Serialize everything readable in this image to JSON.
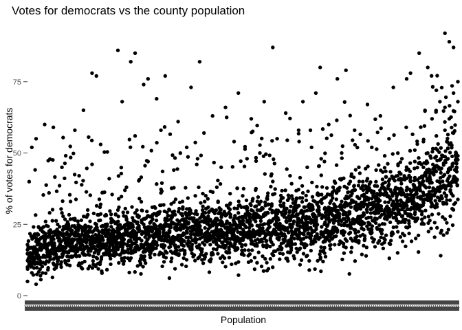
{
  "colors": {
    "background": "#ffffff",
    "point": "#000000",
    "tick_text": "#4d4d4d",
    "x_tick_label": "#444444"
  },
  "chart_data": {
    "type": "scatter",
    "title": "Votes for democrats vs the county population",
    "xlabel": "Population",
    "ylabel": "% of votes for democrats",
    "x_axis": "categorical",
    "x_tick_labels_overlapping": true,
    "ylim": [
      0,
      94
    ],
    "yticks": [
      0,
      25,
      50,
      75
    ],
    "grid": false,
    "legend": "none",
    "approx_point_count": 3100,
    "approximate_points_x_is_population_rank_fraction": [
      [
        0.0,
        5
      ],
      [
        0.0,
        10
      ],
      [
        0.01,
        13
      ],
      [
        0.01,
        8
      ],
      [
        0.01,
        52
      ],
      [
        0.02,
        4
      ],
      [
        0.02,
        15
      ],
      [
        0.02,
        55
      ],
      [
        0.03,
        17
      ],
      [
        0.03,
        11
      ],
      [
        0.03,
        7
      ],
      [
        0.04,
        19
      ],
      [
        0.04,
        60
      ],
      [
        0.05,
        14
      ],
      [
        0.05,
        22
      ],
      [
        0.05,
        36
      ],
      [
        0.06,
        59
      ],
      [
        0.06,
        18
      ],
      [
        0.07,
        12
      ],
      [
        0.07,
        25
      ],
      [
        0.08,
        16
      ],
      [
        0.08,
        29
      ],
      [
        0.08,
        45
      ],
      [
        0.09,
        20
      ],
      [
        0.09,
        24
      ],
      [
        0.1,
        17
      ],
      [
        0.1,
        33
      ],
      [
        0.11,
        21
      ],
      [
        0.11,
        27
      ],
      [
        0.11,
        58
      ],
      [
        0.12,
        14
      ],
      [
        0.12,
        42
      ],
      [
        0.13,
        19
      ],
      [
        0.13,
        24
      ],
      [
        0.13,
        65
      ],
      [
        0.14,
        22
      ],
      [
        0.14,
        30
      ],
      [
        0.15,
        78
      ],
      [
        0.15,
        18
      ],
      [
        0.15,
        46
      ],
      [
        0.16,
        77
      ],
      [
        0.16,
        25
      ],
      [
        0.17,
        20
      ],
      [
        0.17,
        32
      ],
      [
        0.17,
        53
      ],
      [
        0.18,
        23
      ],
      [
        0.18,
        28
      ],
      [
        0.19,
        15
      ],
      [
        0.19,
        41
      ],
      [
        0.2,
        26
      ],
      [
        0.2,
        21
      ],
      [
        0.21,
        86
      ],
      [
        0.21,
        30
      ],
      [
        0.22,
        24
      ],
      [
        0.22,
        19
      ],
      [
        0.22,
        68
      ],
      [
        0.23,
        27
      ],
      [
        0.23,
        38
      ],
      [
        0.24,
        82
      ],
      [
        0.24,
        22
      ],
      [
        0.25,
        85
      ],
      [
        0.25,
        29
      ],
      [
        0.25,
        56
      ],
      [
        0.26,
        20
      ],
      [
        0.26,
        34
      ],
      [
        0.27,
        74
      ],
      [
        0.27,
        25
      ],
      [
        0.28,
        28
      ],
      [
        0.28,
        47
      ],
      [
        0.28,
        76
      ],
      [
        0.29,
        23
      ],
      [
        0.29,
        31
      ],
      [
        0.3,
        69
      ],
      [
        0.3,
        21
      ],
      [
        0.31,
        36
      ],
      [
        0.31,
        58
      ],
      [
        0.32,
        27
      ],
      [
        0.32,
        77
      ],
      [
        0.33,
        24
      ],
      [
        0.33,
        30
      ],
      [
        0.34,
        44
      ],
      [
        0.34,
        19
      ],
      [
        0.35,
        25
      ],
      [
        0.35,
        61
      ],
      [
        0.36,
        28
      ],
      [
        0.36,
        33
      ],
      [
        0.37,
        22
      ],
      [
        0.37,
        52
      ],
      [
        0.38,
        27
      ],
      [
        0.38,
        73
      ],
      [
        0.39,
        20
      ],
      [
        0.39,
        35
      ],
      [
        0.4,
        82
      ],
      [
        0.4,
        24
      ],
      [
        0.41,
        29
      ],
      [
        0.41,
        57
      ],
      [
        0.42,
        26
      ],
      [
        0.42,
        31
      ],
      [
        0.43,
        21
      ],
      [
        0.43,
        63
      ],
      [
        0.44,
        27
      ],
      [
        0.44,
        38
      ],
      [
        0.45,
        23
      ],
      [
        0.45,
        45
      ],
      [
        0.46,
        28
      ],
      [
        0.46,
        66
      ],
      [
        0.47,
        24
      ],
      [
        0.47,
        32
      ],
      [
        0.48,
        20
      ],
      [
        0.48,
        54
      ],
      [
        0.49,
        29
      ],
      [
        0.49,
        71
      ],
      [
        0.5,
        25
      ],
      [
        0.5,
        35
      ],
      [
        0.51,
        22
      ],
      [
        0.51,
        48
      ],
      [
        0.52,
        30
      ],
      [
        0.52,
        62
      ],
      [
        0.53,
        26
      ],
      [
        0.53,
        37
      ],
      [
        0.54,
        23
      ],
      [
        0.54,
        50
      ],
      [
        0.55,
        28
      ],
      [
        0.55,
        68
      ],
      [
        0.56,
        32
      ],
      [
        0.56,
        25
      ],
      [
        0.57,
        87
      ],
      [
        0.57,
        40
      ],
      [
        0.58,
        27
      ],
      [
        0.58,
        55
      ],
      [
        0.59,
        22
      ],
      [
        0.59,
        34
      ],
      [
        0.6,
        29
      ],
      [
        0.6,
        64
      ],
      [
        0.61,
        25
      ],
      [
        0.61,
        42
      ],
      [
        0.62,
        31
      ],
      [
        0.62,
        20
      ],
      [
        0.63,
        58
      ],
      [
        0.63,
        27
      ],
      [
        0.64,
        36
      ],
      [
        0.64,
        68
      ],
      [
        0.65,
        24
      ],
      [
        0.65,
        45
      ],
      [
        0.66,
        30
      ],
      [
        0.66,
        52
      ],
      [
        0.67,
        27
      ],
      [
        0.67,
        71
      ],
      [
        0.68,
        80
      ],
      [
        0.68,
        33
      ],
      [
        0.69,
        25
      ],
      [
        0.69,
        47
      ],
      [
        0.7,
        31
      ],
      [
        0.7,
        60
      ],
      [
        0.71,
        28
      ],
      [
        0.71,
        38
      ],
      [
        0.72,
        23
      ],
      [
        0.72,
        76
      ],
      [
        0.73,
        33
      ],
      [
        0.73,
        50
      ],
      [
        0.74,
        79
      ],
      [
        0.74,
        29
      ],
      [
        0.75,
        40
      ],
      [
        0.75,
        35
      ],
      [
        0.76,
        26
      ],
      [
        0.76,
        58
      ],
      [
        0.77,
        32
      ],
      [
        0.77,
        45
      ],
      [
        0.78,
        37
      ],
      [
        0.78,
        28
      ],
      [
        0.79,
        67
      ],
      [
        0.79,
        41
      ],
      [
        0.8,
        34
      ],
      [
        0.8,
        52
      ],
      [
        0.81,
        30
      ],
      [
        0.81,
        44
      ],
      [
        0.82,
        63
      ],
      [
        0.82,
        36
      ],
      [
        0.83,
        27
      ],
      [
        0.83,
        49
      ],
      [
        0.84,
        39
      ],
      [
        0.84,
        55
      ],
      [
        0.85,
        33
      ],
      [
        0.85,
        73
      ],
      [
        0.86,
        42
      ],
      [
        0.86,
        15
      ],
      [
        0.87,
        48
      ],
      [
        0.87,
        36
      ],
      [
        0.88,
        59
      ],
      [
        0.88,
        44
      ],
      [
        0.89,
        78
      ],
      [
        0.89,
        40
      ],
      [
        0.9,
        51
      ],
      [
        0.9,
        47
      ],
      [
        0.91,
        85
      ],
      [
        0.91,
        38
      ],
      [
        0.92,
        54
      ],
      [
        0.92,
        45
      ],
      [
        0.93,
        80
      ],
      [
        0.93,
        50
      ],
      [
        0.94,
        62
      ],
      [
        0.94,
        43
      ],
      [
        0.95,
        72
      ],
      [
        0.95,
        56
      ],
      [
        0.96,
        22
      ],
      [
        0.96,
        48
      ],
      [
        0.96,
        14
      ],
      [
        0.97,
        66
      ],
      [
        0.97,
        58
      ],
      [
        0.97,
        92
      ],
      [
        0.98,
        53
      ],
      [
        0.98,
        89
      ],
      [
        0.98,
        62
      ],
      [
        0.99,
        71
      ],
      [
        0.99,
        57
      ],
      [
        0.99,
        87
      ],
      [
        1.0,
        75
      ],
      [
        1.0,
        49
      ],
      [
        1.0,
        68
      ]
    ]
  }
}
